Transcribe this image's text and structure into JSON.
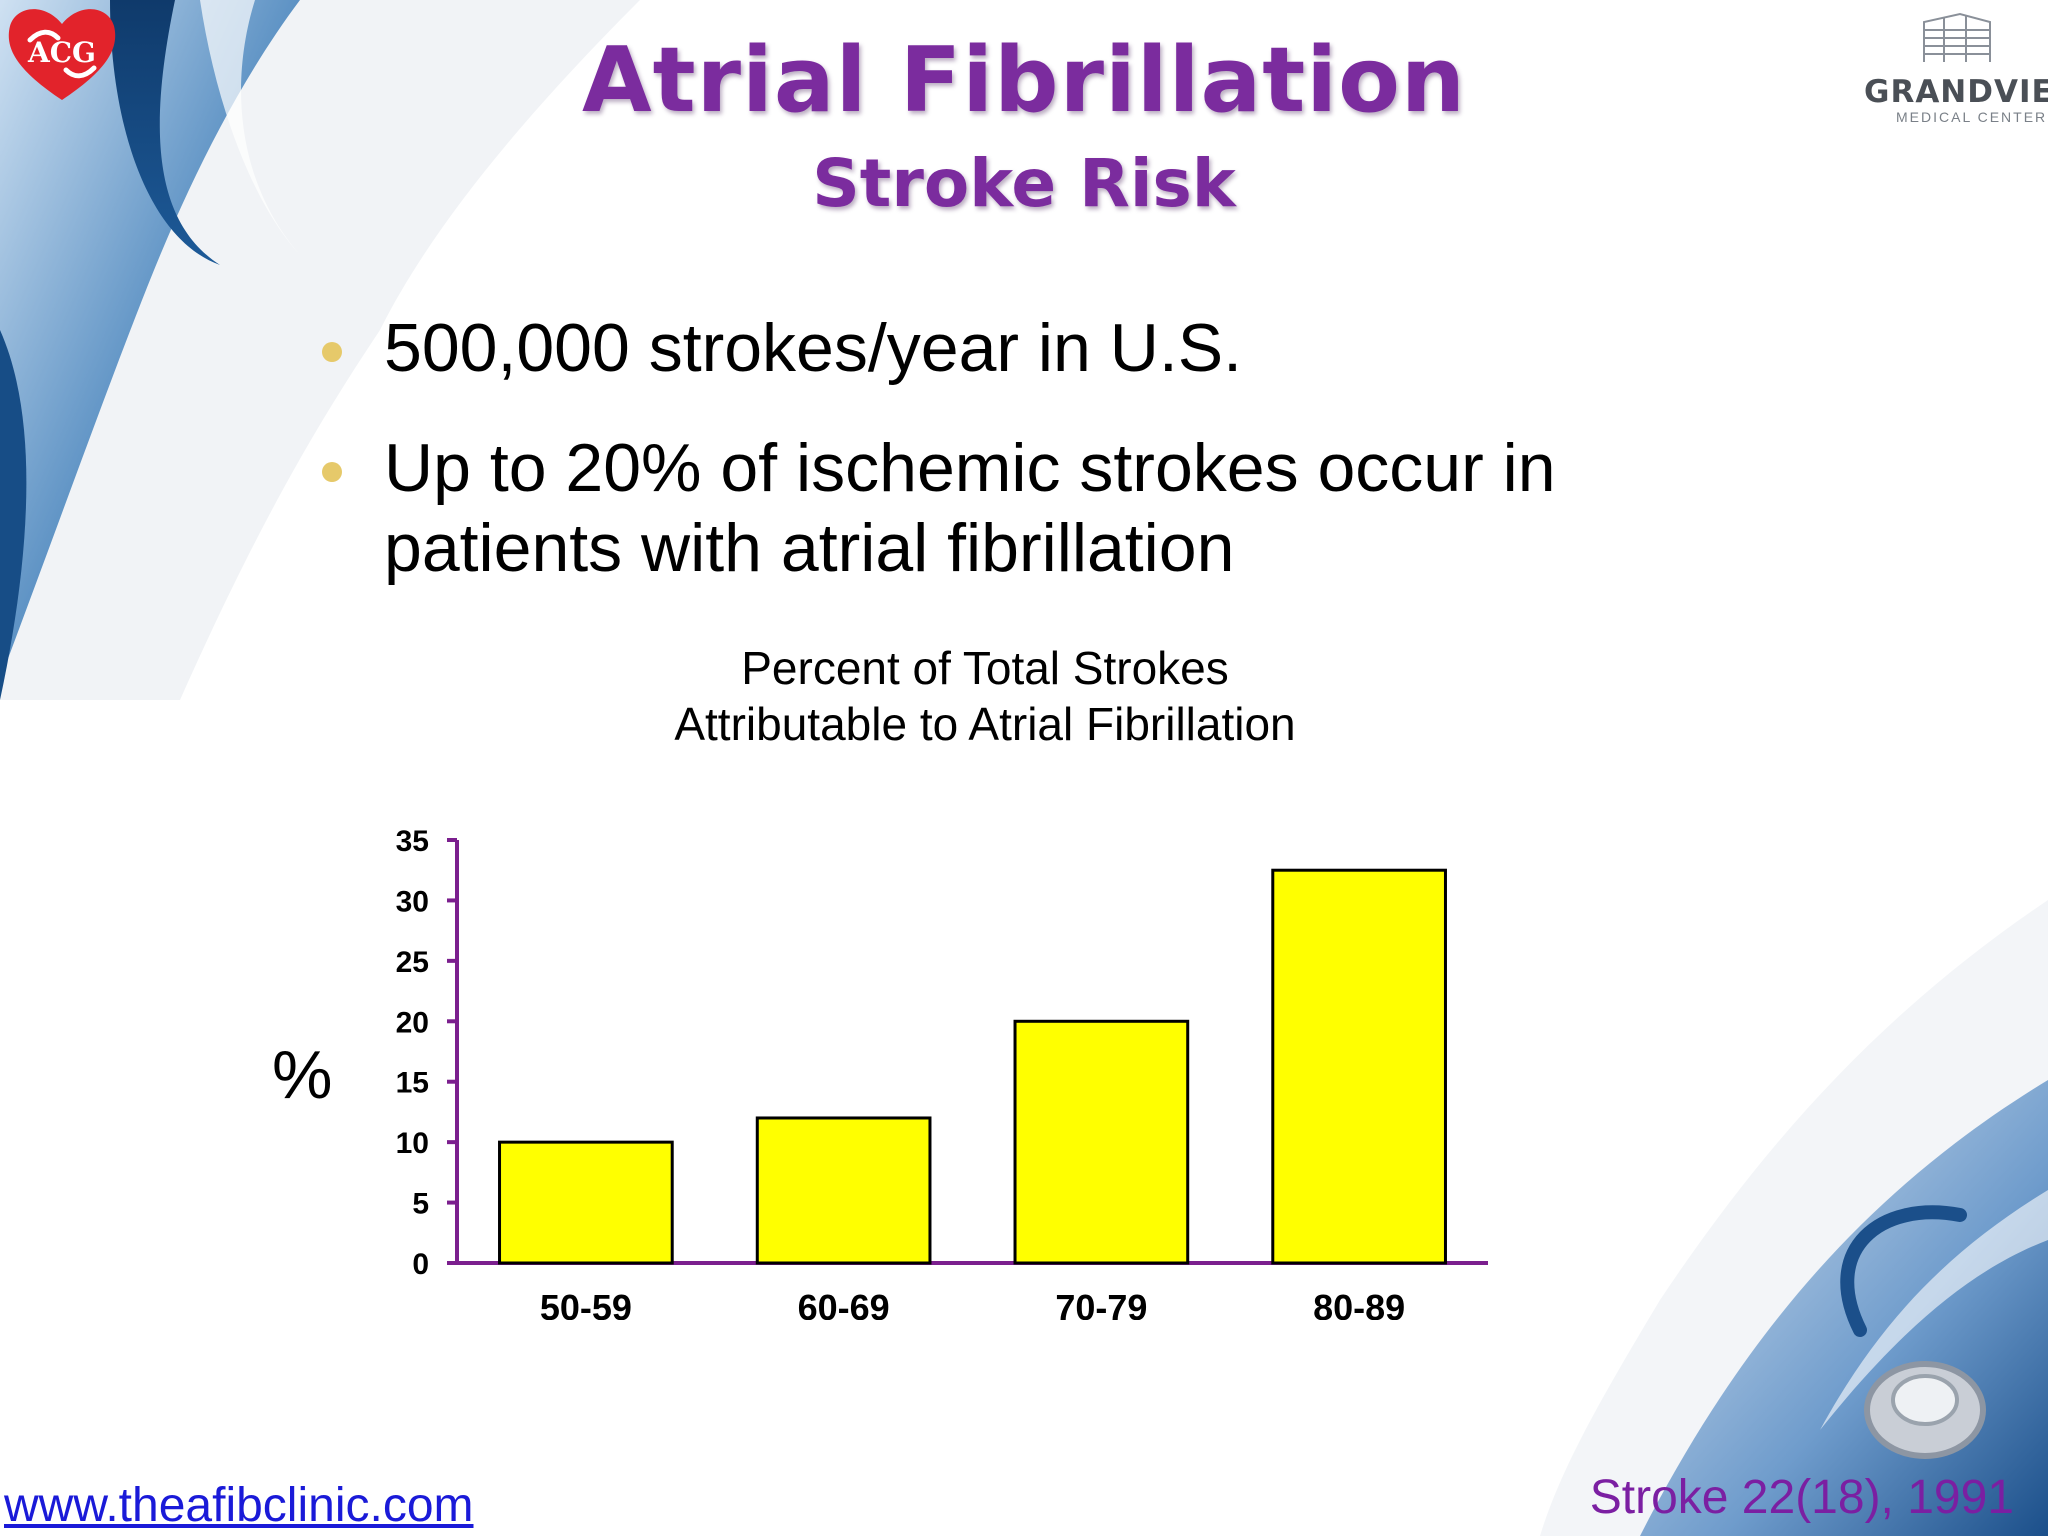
{
  "header": {
    "title": "Atrial Fibrillation",
    "subtitle": "Stroke Risk"
  },
  "bullets": [
    "500,000 strokes/year in U.S.",
    "Up to 20% of ischemic strokes occur in patients with atrial fibrillation"
  ],
  "logos": {
    "left": "ACG",
    "right_name": "GRANDVIEW",
    "right_sub": "MEDICAL CENTER"
  },
  "footer": {
    "website": "www.theafibclinic.com",
    "citation": "Stroke 22(18), 1991"
  },
  "colors": {
    "title": "#7b2c9e",
    "bar_fill": "#ffff00",
    "axis": "#7b1f8e",
    "bullet_dot": "#e6c96a",
    "link": "#1a1ad8",
    "citation": "#7b1fa2"
  },
  "chart_data": {
    "type": "bar",
    "title": "Percent of Total Strokes Attributable to Atrial Fibrillation",
    "title_lines": [
      "Percent of Total Strokes",
      "Attributable to Atrial Fibrillation"
    ],
    "ylabel": "%",
    "xlabel": "",
    "categories": [
      "50-59",
      "60-69",
      "70-79",
      "80-89"
    ],
    "values": [
      10,
      12,
      20,
      32.5
    ],
    "ylim": [
      0,
      35
    ],
    "yticks": [
      0,
      5,
      10,
      15,
      20,
      25,
      30,
      35
    ],
    "grid": false,
    "legend": "none"
  }
}
